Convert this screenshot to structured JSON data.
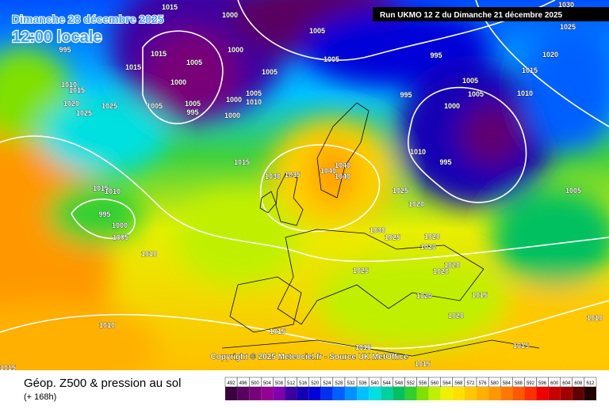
{
  "header": {
    "date": "Dimanche 28 décembre 2025",
    "time": "12:00 locale",
    "run": "Run UKMO 12 Z du Dimanche 21 décembre 2025"
  },
  "footer": {
    "title": "Géop. Z500 & pression au sol",
    "lead": "(+ 168h)",
    "copyright": "Copyright © 2025 Meteociel.fr - Source UK MetOffice"
  },
  "legend": {
    "values": [
      492,
      496,
      500,
      504,
      508,
      512,
      516,
      520,
      524,
      528,
      532,
      536,
      540,
      544,
      548,
      552,
      556,
      560,
      564,
      568,
      572,
      576,
      580,
      584,
      588,
      592,
      596,
      600,
      604,
      608,
      612
    ],
    "colors": [
      "#3a0040",
      "#5a0060",
      "#780078",
      "#940094",
      "#8000b0",
      "#3c00a0",
      "#1400b4",
      "#0000d8",
      "#0030f0",
      "#0060ff",
      "#0090ff",
      "#00c0ff",
      "#00e0e0",
      "#00d0a0",
      "#00c060",
      "#30d030",
      "#80e000",
      "#c0f000",
      "#f0f000",
      "#ffe000",
      "#ffc800",
      "#ffb000",
      "#ff9800",
      "#ff7800",
      "#ff5800",
      "#ff3000",
      "#f00000",
      "#c80000",
      "#a00000",
      "#600000",
      "#200000"
    ]
  },
  "isobar_labels": [
    1000,
    1005,
    1000,
    1005,
    1015,
    1000,
    1005,
    1005,
    995,
    1000,
    1000,
    1005,
    1005,
    1010,
    1005,
    995,
    995,
    1005,
    1005,
    1000,
    1010,
    1015,
    1020,
    1025,
    1030,
    1010,
    995,
    1005,
    1015,
    995,
    1010,
    1015,
    1020,
    1025,
    1025,
    1015,
    1030,
    1035,
    1040,
    1040,
    1040,
    1025,
    1020,
    1015,
    1010,
    995,
    1000,
    1005,
    1010,
    1030,
    1025,
    1020,
    1020,
    1020,
    1020,
    1025,
    1020,
    1015,
    1020,
    1010,
    1015,
    1015,
    1015,
    1015,
    1010,
    1015,
    1015
  ]
}
